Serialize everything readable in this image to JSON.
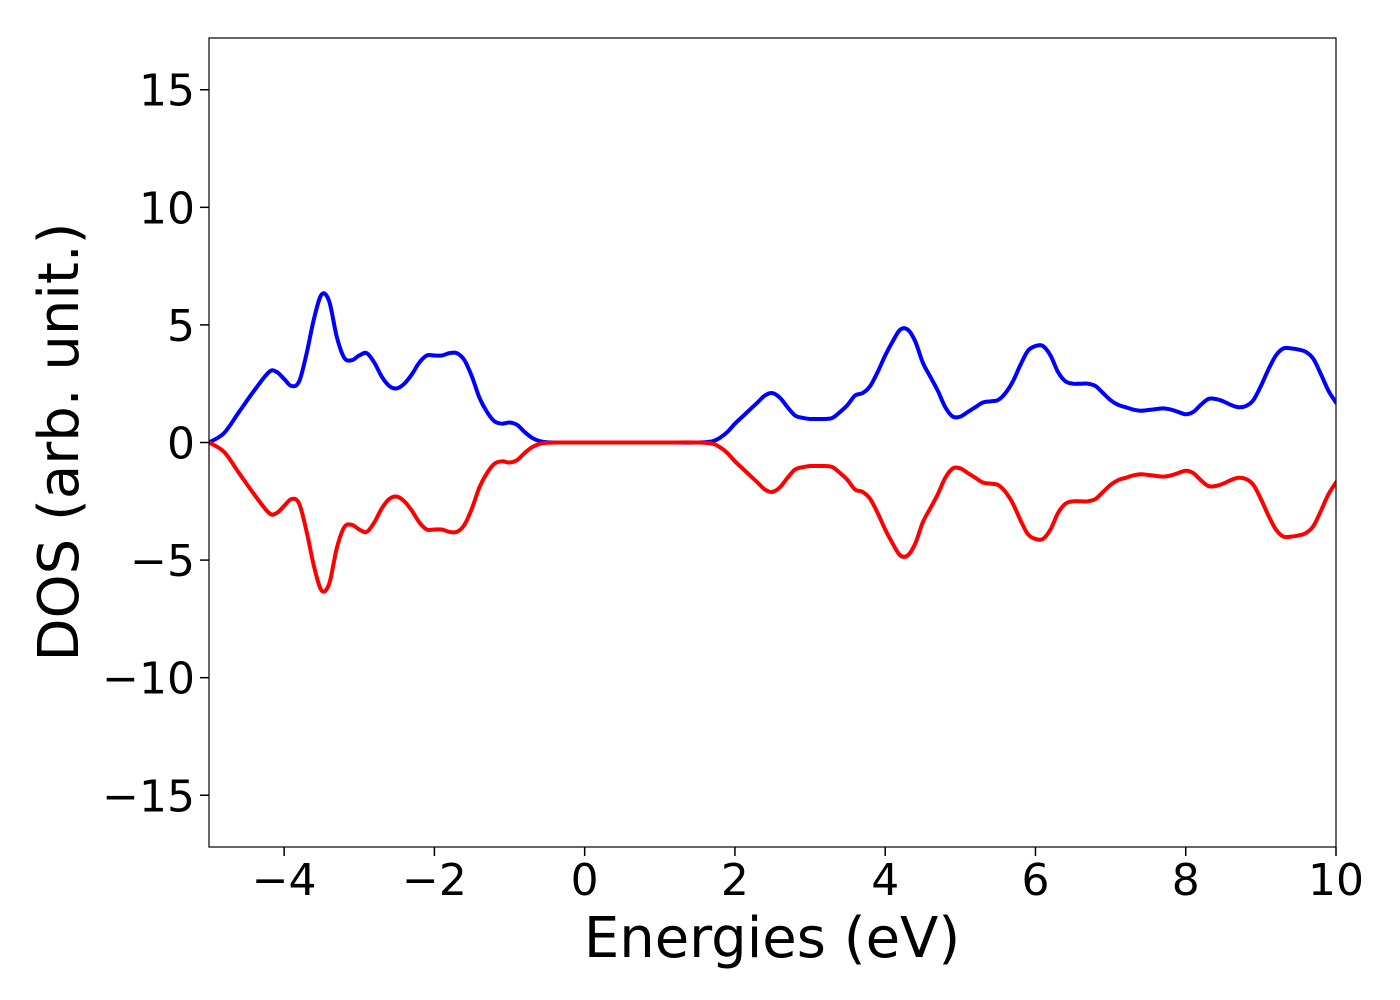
{
  "chart_data": {
    "type": "line",
    "title": "",
    "xlabel": "Energies (eV)",
    "ylabel": "DOS (arb. unit.)",
    "xlim": [
      -5,
      10
    ],
    "ylim": [
      -17.2,
      17.2
    ],
    "xticks": [
      -4,
      -2,
      0,
      2,
      4,
      6,
      8,
      10
    ],
    "xtick_labels": [
      "−4",
      "−2",
      "0",
      "2",
      "4",
      "6",
      "8",
      "10"
    ],
    "yticks": [
      15,
      10,
      5,
      0,
      -5,
      -10,
      -15
    ],
    "ytick_labels": [
      "15",
      "10",
      "5",
      "0",
      "−5",
      "−10",
      "−15"
    ],
    "grid": false,
    "legend": "none",
    "series": [
      {
        "color": "#0000ff",
        "points": [
          [
            -5.0,
            0.0
          ],
          [
            -4.8,
            0.4
          ],
          [
            -4.6,
            1.3
          ],
          [
            -4.4,
            2.2
          ],
          [
            -4.2,
            3.0
          ],
          [
            -4.1,
            3.0
          ],
          [
            -4.0,
            2.7
          ],
          [
            -3.9,
            2.4
          ],
          [
            -3.8,
            2.6
          ],
          [
            -3.7,
            3.8
          ],
          [
            -3.6,
            5.3
          ],
          [
            -3.5,
            6.3
          ],
          [
            -3.4,
            6.0
          ],
          [
            -3.3,
            4.5
          ],
          [
            -3.2,
            3.6
          ],
          [
            -3.1,
            3.5
          ],
          [
            -3.0,
            3.7
          ],
          [
            -2.9,
            3.8
          ],
          [
            -2.8,
            3.4
          ],
          [
            -2.7,
            2.8
          ],
          [
            -2.6,
            2.4
          ],
          [
            -2.5,
            2.3
          ],
          [
            -2.4,
            2.5
          ],
          [
            -2.3,
            2.9
          ],
          [
            -2.2,
            3.4
          ],
          [
            -2.1,
            3.7
          ],
          [
            -2.0,
            3.7
          ],
          [
            -1.9,
            3.7
          ],
          [
            -1.8,
            3.8
          ],
          [
            -1.7,
            3.8
          ],
          [
            -1.6,
            3.5
          ],
          [
            -1.5,
            2.8
          ],
          [
            -1.4,
            1.9
          ],
          [
            -1.3,
            1.3
          ],
          [
            -1.2,
            0.9
          ],
          [
            -1.1,
            0.8
          ],
          [
            -1.0,
            0.85
          ],
          [
            -0.9,
            0.75
          ],
          [
            -0.8,
            0.45
          ],
          [
            -0.7,
            0.2
          ],
          [
            -0.6,
            0.06
          ],
          [
            -0.5,
            0.01
          ],
          [
            -0.3,
            0.0
          ],
          [
            0.0,
            0.0
          ],
          [
            0.5,
            0.0
          ],
          [
            1.0,
            0.0
          ],
          [
            1.5,
            0.0
          ],
          [
            1.7,
            0.05
          ],
          [
            1.8,
            0.2
          ],
          [
            1.9,
            0.45
          ],
          [
            2.0,
            0.8
          ],
          [
            2.1,
            1.1
          ],
          [
            2.2,
            1.4
          ],
          [
            2.3,
            1.7
          ],
          [
            2.4,
            2.0
          ],
          [
            2.5,
            2.1
          ],
          [
            2.6,
            1.9
          ],
          [
            2.7,
            1.5
          ],
          [
            2.8,
            1.15
          ],
          [
            2.9,
            1.05
          ],
          [
            3.0,
            1.0
          ],
          [
            3.1,
            1.0
          ],
          [
            3.2,
            1.0
          ],
          [
            3.3,
            1.05
          ],
          [
            3.4,
            1.3
          ],
          [
            3.5,
            1.6
          ],
          [
            3.6,
            2.0
          ],
          [
            3.7,
            2.1
          ],
          [
            3.8,
            2.4
          ],
          [
            3.9,
            3.0
          ],
          [
            4.0,
            3.7
          ],
          [
            4.1,
            4.3
          ],
          [
            4.2,
            4.8
          ],
          [
            4.3,
            4.8
          ],
          [
            4.4,
            4.3
          ],
          [
            4.5,
            3.4
          ],
          [
            4.6,
            2.8
          ],
          [
            4.7,
            2.2
          ],
          [
            4.8,
            1.5
          ],
          [
            4.9,
            1.1
          ],
          [
            5.0,
            1.1
          ],
          [
            5.1,
            1.3
          ],
          [
            5.2,
            1.5
          ],
          [
            5.3,
            1.7
          ],
          [
            5.4,
            1.75
          ],
          [
            5.5,
            1.8
          ],
          [
            5.6,
            2.1
          ],
          [
            5.7,
            2.6
          ],
          [
            5.8,
            3.3
          ],
          [
            5.9,
            3.9
          ],
          [
            6.0,
            4.1
          ],
          [
            6.1,
            4.1
          ],
          [
            6.2,
            3.7
          ],
          [
            6.3,
            3.0
          ],
          [
            6.4,
            2.6
          ],
          [
            6.5,
            2.5
          ],
          [
            6.6,
            2.5
          ],
          [
            6.7,
            2.5
          ],
          [
            6.8,
            2.4
          ],
          [
            6.9,
            2.1
          ],
          [
            7.0,
            1.8
          ],
          [
            7.1,
            1.6
          ],
          [
            7.2,
            1.5
          ],
          [
            7.3,
            1.4
          ],
          [
            7.4,
            1.35
          ],
          [
            7.5,
            1.38
          ],
          [
            7.6,
            1.42
          ],
          [
            7.7,
            1.45
          ],
          [
            7.8,
            1.4
          ],
          [
            7.9,
            1.3
          ],
          [
            8.0,
            1.2
          ],
          [
            8.1,
            1.3
          ],
          [
            8.2,
            1.6
          ],
          [
            8.3,
            1.85
          ],
          [
            8.4,
            1.85
          ],
          [
            8.5,
            1.75
          ],
          [
            8.6,
            1.6
          ],
          [
            8.7,
            1.5
          ],
          [
            8.8,
            1.55
          ],
          [
            8.9,
            1.8
          ],
          [
            9.0,
            2.4
          ],
          [
            9.1,
            3.1
          ],
          [
            9.2,
            3.7
          ],
          [
            9.3,
            4.0
          ],
          [
            9.4,
            4.0
          ],
          [
            9.5,
            3.95
          ],
          [
            9.6,
            3.85
          ],
          [
            9.7,
            3.55
          ],
          [
            9.8,
            2.9
          ],
          [
            9.9,
            2.2
          ],
          [
            10.0,
            1.7
          ]
        ]
      },
      {
        "color": "#ff0000",
        "points": [
          [
            -5.0,
            0.0
          ],
          [
            -4.8,
            -0.4
          ],
          [
            -4.6,
            -1.3
          ],
          [
            -4.4,
            -2.2
          ],
          [
            -4.2,
            -3.0
          ],
          [
            -4.1,
            -3.0
          ],
          [
            -4.0,
            -2.7
          ],
          [
            -3.9,
            -2.4
          ],
          [
            -3.8,
            -2.6
          ],
          [
            -3.7,
            -3.8
          ],
          [
            -3.6,
            -5.3
          ],
          [
            -3.5,
            -6.3
          ],
          [
            -3.4,
            -6.0
          ],
          [
            -3.3,
            -4.5
          ],
          [
            -3.2,
            -3.6
          ],
          [
            -3.1,
            -3.5
          ],
          [
            -3.0,
            -3.7
          ],
          [
            -2.9,
            -3.8
          ],
          [
            -2.8,
            -3.4
          ],
          [
            -2.7,
            -2.8
          ],
          [
            -2.6,
            -2.4
          ],
          [
            -2.5,
            -2.3
          ],
          [
            -2.4,
            -2.5
          ],
          [
            -2.3,
            -2.9
          ],
          [
            -2.2,
            -3.4
          ],
          [
            -2.1,
            -3.7
          ],
          [
            -2.0,
            -3.7
          ],
          [
            -1.9,
            -3.7
          ],
          [
            -1.8,
            -3.8
          ],
          [
            -1.7,
            -3.8
          ],
          [
            -1.6,
            -3.5
          ],
          [
            -1.5,
            -2.8
          ],
          [
            -1.4,
            -1.9
          ],
          [
            -1.3,
            -1.3
          ],
          [
            -1.2,
            -0.9
          ],
          [
            -1.1,
            -0.8
          ],
          [
            -1.0,
            -0.85
          ],
          [
            -0.9,
            -0.75
          ],
          [
            -0.8,
            -0.45
          ],
          [
            -0.7,
            -0.2
          ],
          [
            -0.6,
            -0.06
          ],
          [
            -0.5,
            -0.01
          ],
          [
            -0.3,
            0.0
          ],
          [
            0.0,
            0.0
          ],
          [
            0.5,
            0.0
          ],
          [
            1.0,
            0.0
          ],
          [
            1.5,
            0.0
          ],
          [
            1.7,
            -0.05
          ],
          [
            1.8,
            -0.2
          ],
          [
            1.9,
            -0.45
          ],
          [
            2.0,
            -0.8
          ],
          [
            2.1,
            -1.1
          ],
          [
            2.2,
            -1.4
          ],
          [
            2.3,
            -1.7
          ],
          [
            2.4,
            -2.0
          ],
          [
            2.5,
            -2.1
          ],
          [
            2.6,
            -1.9
          ],
          [
            2.7,
            -1.5
          ],
          [
            2.8,
            -1.15
          ],
          [
            2.9,
            -1.05
          ],
          [
            3.0,
            -1.0
          ],
          [
            3.1,
            -1.0
          ],
          [
            3.2,
            -1.0
          ],
          [
            3.3,
            -1.05
          ],
          [
            3.4,
            -1.3
          ],
          [
            3.5,
            -1.6
          ],
          [
            3.6,
            -2.0
          ],
          [
            3.7,
            -2.1
          ],
          [
            3.8,
            -2.4
          ],
          [
            3.9,
            -3.0
          ],
          [
            4.0,
            -3.7
          ],
          [
            4.1,
            -4.3
          ],
          [
            4.2,
            -4.8
          ],
          [
            4.3,
            -4.8
          ],
          [
            4.4,
            -4.3
          ],
          [
            4.5,
            -3.4
          ],
          [
            4.6,
            -2.8
          ],
          [
            4.7,
            -2.2
          ],
          [
            4.8,
            -1.5
          ],
          [
            4.9,
            -1.1
          ],
          [
            5.0,
            -1.1
          ],
          [
            5.1,
            -1.3
          ],
          [
            5.2,
            -1.5
          ],
          [
            5.3,
            -1.7
          ],
          [
            5.4,
            -1.75
          ],
          [
            5.5,
            -1.8
          ],
          [
            5.6,
            -2.1
          ],
          [
            5.7,
            -2.6
          ],
          [
            5.8,
            -3.3
          ],
          [
            5.9,
            -3.9
          ],
          [
            6.0,
            -4.1
          ],
          [
            6.1,
            -4.1
          ],
          [
            6.2,
            -3.7
          ],
          [
            6.3,
            -3.0
          ],
          [
            6.4,
            -2.6
          ],
          [
            6.5,
            -2.5
          ],
          [
            6.6,
            -2.5
          ],
          [
            6.7,
            -2.5
          ],
          [
            6.8,
            -2.4
          ],
          [
            6.9,
            -2.1
          ],
          [
            7.0,
            -1.8
          ],
          [
            7.1,
            -1.6
          ],
          [
            7.2,
            -1.5
          ],
          [
            7.3,
            -1.4
          ],
          [
            7.4,
            -1.35
          ],
          [
            7.5,
            -1.38
          ],
          [
            7.6,
            -1.42
          ],
          [
            7.7,
            -1.45
          ],
          [
            7.8,
            -1.4
          ],
          [
            7.9,
            -1.3
          ],
          [
            8.0,
            -1.2
          ],
          [
            8.1,
            -1.3
          ],
          [
            8.2,
            -1.6
          ],
          [
            8.3,
            -1.85
          ],
          [
            8.4,
            -1.85
          ],
          [
            8.5,
            -1.75
          ],
          [
            8.6,
            -1.6
          ],
          [
            8.7,
            -1.5
          ],
          [
            8.8,
            -1.55
          ],
          [
            8.9,
            -1.8
          ],
          [
            9.0,
            -2.4
          ],
          [
            9.1,
            -3.1
          ],
          [
            9.2,
            -3.7
          ],
          [
            9.3,
            -4.0
          ],
          [
            9.4,
            -4.0
          ],
          [
            9.5,
            -3.95
          ],
          [
            9.6,
            -3.85
          ],
          [
            9.7,
            -3.55
          ],
          [
            9.8,
            -2.9
          ],
          [
            9.9,
            -2.2
          ],
          [
            10.0,
            -1.7
          ]
        ]
      }
    ]
  }
}
